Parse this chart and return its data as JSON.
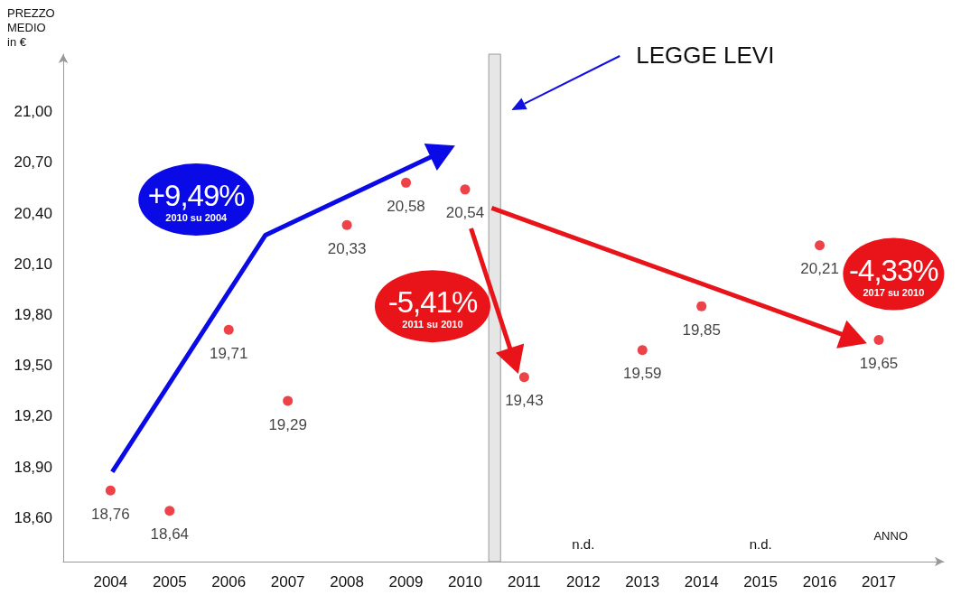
{
  "chart_data": {
    "type": "scatter",
    "xlabel": "ANNO",
    "ylabel": "PREZZO\nMEDIO\nin €",
    "x": [
      2004,
      2005,
      2006,
      2007,
      2008,
      2009,
      2010,
      2011,
      2012,
      2013,
      2014,
      2015,
      2016,
      2017
    ],
    "series": [
      {
        "color": "#e8141a",
        "values": [
          18.76,
          18.64,
          19.71,
          19.29,
          20.33,
          20.58,
          20.54,
          19.43,
          null,
          19.59,
          19.85,
          null,
          20.21,
          19.65
        ],
        "value_labels": [
          "18,76",
          "18,64",
          "19,71",
          "19,29",
          "20,33",
          "20,58",
          "20,54",
          "19,43",
          null,
          "19,59",
          "19,85",
          null,
          "20,21",
          "19,65"
        ]
      }
    ],
    "xlim": [
      2003.2,
      2018.1
    ],
    "xticks": [
      2004,
      2005,
      2006,
      2007,
      2008,
      2009,
      2010,
      2011,
      2012,
      2013,
      2014,
      2015,
      2016,
      2017
    ],
    "ylim": [
      18.34,
      21.34
    ],
    "yticks": [
      {
        "value": 18.6,
        "label": "18,60"
      },
      {
        "value": 18.9,
        "label": "18,90"
      },
      {
        "value": 19.2,
        "label": "19,20"
      },
      {
        "value": 19.5,
        "label": "19,50"
      },
      {
        "value": 19.8,
        "label": "19,80"
      },
      {
        "value": 20.1,
        "label": "20,10"
      },
      {
        "value": 20.4,
        "label": "20,40"
      },
      {
        "value": 20.7,
        "label": "20,70"
      },
      {
        "value": 21.0,
        "label": "21,00"
      }
    ],
    "bands": [
      {
        "axis": "x",
        "from": 2010.4,
        "to": 2010.6,
        "color": "#e6e6e6"
      }
    ],
    "annotations": [
      "+9,49%",
      "2010 su 2004",
      "-5,41%",
      "2011 su 2010",
      "-4,33%",
      "2017 su 2010",
      "LEGGE LEVI",
      "n.d.",
      "n.d."
    ],
    "grid": false,
    "marker": "circle"
  }
}
